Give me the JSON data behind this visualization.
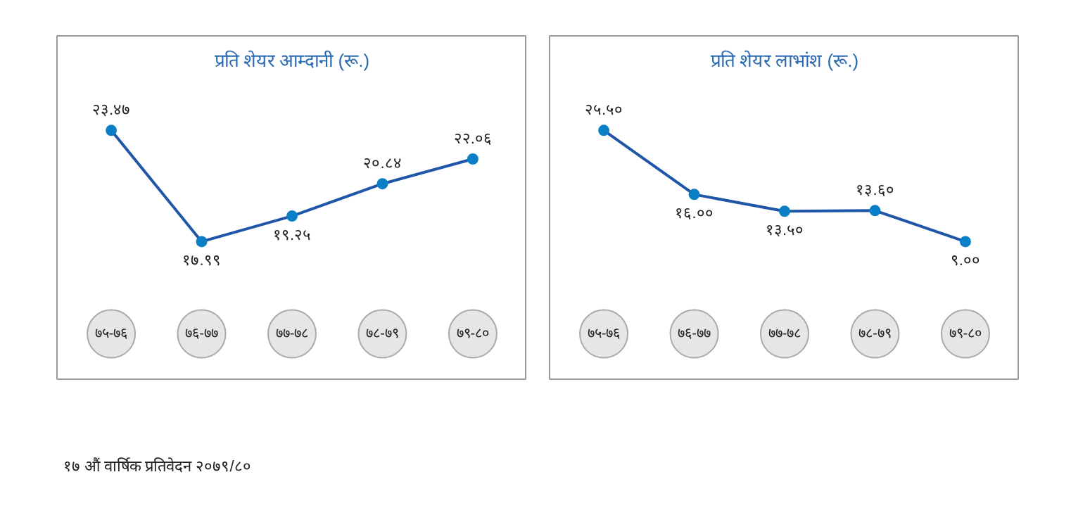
{
  "chart_data": [
    {
      "type": "line",
      "title": "प्रति शेयर आम्दानी (रू.)",
      "categories": [
        "७५-७६",
        "७६-७७",
        "७७-७८",
        "७८-७९",
        "७९-८०"
      ],
      "marker": "circle",
      "series": [
        {
          "color": "#1f56a8",
          "values": [
            23.47,
            17.99,
            19.25,
            20.84,
            22.06
          ],
          "value_labels": [
            "२३.४७",
            "१७.९९",
            "१९.२५",
            "२०.८४",
            "२२.०६"
          ]
        }
      ],
      "annotations": [
        "१७ औं वार्षिक प्रतिवेदन २०७९/८०"
      ],
      "grid": false
    },
    {
      "type": "line",
      "title": "प्रति शेयर लाभांश (रू.)",
      "categories": [
        "७५-७६",
        "७६-७७",
        "७७-७८",
        "७८-७९",
        "७९-८०"
      ],
      "marker": "circle",
      "series": [
        {
          "color": "#1f56a8",
          "values": [
            25.5,
            16.0,
            13.5,
            13.6,
            9.0
          ],
          "value_labels": [
            "२५.५०",
            "१६.००",
            "१३.५०",
            "१३.६०",
            "९.००"
          ]
        }
      ],
      "grid": false
    }
  ]
}
